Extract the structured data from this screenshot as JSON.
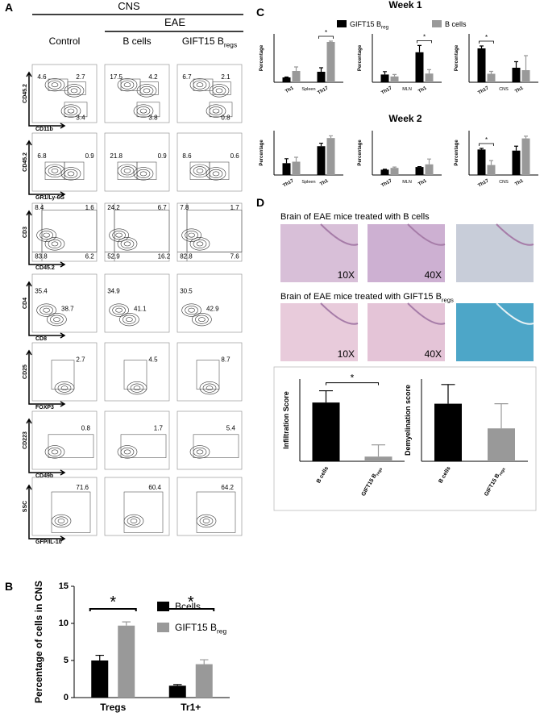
{
  "panel_a": {
    "label": "A",
    "header": "CNS",
    "subheader": "EAE",
    "columns": [
      {
        "text": "Control"
      },
      {
        "text": "B cells"
      },
      {
        "text": "GIFT15 B",
        "sub": "regs"
      }
    ],
    "rows": [
      {
        "y_label": "CD45.2",
        "x_label": "CD11b",
        "values": [
          [
            "4.6",
            "2.7",
            "3.4"
          ],
          [
            "17.5",
            "4.2",
            "3.8"
          ],
          [
            "6.7",
            "2.1",
            "0.8"
          ]
        ]
      },
      {
        "y_label": "CD45.2",
        "x_label": "GR1/Ly-6G",
        "values": [
          [
            "6.8",
            "0.9"
          ],
          [
            "21.8",
            "0.9"
          ],
          [
            "8.6",
            "0.6"
          ]
        ]
      },
      {
        "y_label": "CD3",
        "x_label": "CD45.2",
        "values": [
          [
            "8.4",
            "1.6",
            "83.8",
            "6.2"
          ],
          [
            "24.2",
            "6.7",
            "52.9",
            "16.2"
          ],
          [
            "7.8",
            "1.7",
            "82.8",
            "7.6"
          ]
        ]
      },
      {
        "y_label": "CD4",
        "x_label": "CD8",
        "values": [
          [
            "35.4",
            "38.7"
          ],
          [
            "34.9",
            "41.1"
          ],
          [
            "30.5",
            "42.9"
          ]
        ]
      },
      {
        "y_label": "CD25",
        "x_label": "FOXP3",
        "values": [
          [
            "2.7"
          ],
          [
            "4.5"
          ],
          [
            "8.7"
          ]
        ]
      },
      {
        "y_label": "CD223",
        "x_label": "CD49b",
        "values": [
          [
            "0.8"
          ],
          [
            "1.7"
          ],
          [
            "5.4"
          ]
        ]
      },
      {
        "y_label": "SSC",
        "x_label": "GFP/IL-10",
        "values": [
          [
            "71.6"
          ],
          [
            "60.4"
          ],
          [
            "64.2"
          ]
        ]
      }
    ]
  },
  "panel_b": {
    "label": "B"
  },
  "panel_c": {
    "label": "C",
    "titles": [
      "Week 1",
      "Week 2"
    ],
    "legend": [
      {
        "name": "GIFT15 B",
        "sub": "reg",
        "color": "#000000"
      },
      {
        "name": "B cells",
        "color": "#999999"
      }
    ]
  },
  "panel_d": {
    "label": "D",
    "captions": [
      {
        "text": "Brain of EAE mice treated with B cells"
      },
      {
        "text": "Brain of EAE mice treated with GIFT15 B",
        "sub": "regs"
      }
    ],
    "magnifications": [
      [
        "10X",
        "40X"
      ],
      [
        "10X",
        "40X"
      ]
    ]
  },
  "chart_data": [
    {
      "type": "bar",
      "ylabel": "Percentage of cells in CNS",
      "categories": [
        "Tregs",
        "Tr1+"
      ],
      "series": [
        {
          "name": "Bcells",
          "color": "#000000",
          "values": [
            5,
            1.6
          ],
          "errors": [
            0.7,
            0.15
          ]
        },
        {
          "name": "GIFT15 B",
          "name_sub": "reg",
          "color": "#999999",
          "values": [
            9.7,
            4.5
          ],
          "errors": [
            0.5,
            0.6
          ]
        }
      ],
      "ylim": [
        0,
        15
      ],
      "yticks": [
        0,
        5,
        10,
        15
      ],
      "significance": [
        {
          "category": 0,
          "label": "*"
        },
        {
          "category": 1,
          "label": "*"
        }
      ]
    },
    {
      "type": "bar",
      "ylabel": "Percentage",
      "categories": [
        "Th1",
        "Th17"
      ],
      "group": "Spleen",
      "series": [
        {
          "color": "#000000",
          "values": [
            0.6,
            1.3
          ],
          "errors": [
            0.05,
            0.5
          ]
        },
        {
          "color": "#999999",
          "values": [
            1.4,
            5
          ],
          "errors": [
            0.5,
            0.1
          ]
        }
      ],
      "ylim": [
        0,
        6
      ],
      "significance": [
        {
          "category": 1,
          "label": "*"
        }
      ]
    },
    {
      "type": "bar",
      "ylabel": "Percentage",
      "categories": [
        "Th17",
        "Th1"
      ],
      "group": "MLN",
      "series": [
        {
          "color": "#000000",
          "values": [
            0.8,
            3.1
          ],
          "errors": [
            0.3,
            0.7
          ]
        },
        {
          "color": "#999999",
          "values": [
            0.6,
            0.9
          ],
          "errors": [
            0.2,
            0.4
          ]
        }
      ],
      "ylim": [
        0,
        5
      ],
      "significance": [
        {
          "category": 1,
          "label": "*"
        }
      ]
    },
    {
      "type": "bar",
      "ylabel": "Percentage",
      "categories": [
        "Th17",
        "Th1"
      ],
      "group": "CNS",
      "series": [
        {
          "color": "#000000",
          "values": [
            2.8,
            1.2
          ],
          "errors": [
            0.2,
            0.5
          ]
        },
        {
          "color": "#999999",
          "values": [
            0.7,
            1
          ],
          "errors": [
            0.2,
            1.2
          ]
        }
      ],
      "ylim": [
        0,
        4
      ],
      "significance": [
        {
          "category": 0,
          "label": "*"
        }
      ]
    },
    {
      "type": "bar",
      "ylabel": "Percentage",
      "categories": [
        "Th17",
        "Th1"
      ],
      "group": "Spleen",
      "series": [
        {
          "color": "#000000",
          "values": [
            1.6,
            3.9
          ],
          "errors": [
            0.6,
            0.4
          ]
        },
        {
          "color": "#999999",
          "values": [
            1.8,
            5
          ],
          "errors": [
            0.6,
            0.3
          ]
        }
      ],
      "ylim": [
        0,
        6
      ]
    },
    {
      "type": "bar",
      "ylabel": "Percentage",
      "categories": [
        "Th17",
        "Th1"
      ],
      "group": "MLN",
      "series": [
        {
          "color": "#000000",
          "values": [
            0.6,
            0.9
          ],
          "errors": [
            0.05,
            0.05
          ]
        },
        {
          "color": "#999999",
          "values": [
            0.8,
            1.2
          ],
          "errors": [
            0.1,
            0.6
          ]
        }
      ],
      "ylim": [
        0,
        5
      ]
    },
    {
      "type": "bar",
      "ylabel": "Percentage",
      "categories": [
        "Th17",
        "Th1"
      ],
      "group": "CNS",
      "series": [
        {
          "color": "#000000",
          "values": [
            11.5,
            11
          ],
          "errors": [
            0.5,
            2
          ]
        },
        {
          "color": "#999999",
          "values": [
            4.5,
            16.5
          ],
          "errors": [
            2,
            1
          ]
        }
      ],
      "ylim": [
        0,
        20
      ],
      "significance": [
        {
          "category": 0,
          "label": "*"
        }
      ]
    },
    {
      "type": "bar",
      "ylabel": "Infiltration Score",
      "categories": [
        {
          "text": "B cells"
        },
        {
          "text": "GIFT15 B",
          "sub": "regs"
        }
      ],
      "series": [
        {
          "colors": [
            "#000000",
            "#999999"
          ],
          "values": [
            2.5,
            0.2
          ],
          "errors": [
            0.5,
            0.5
          ]
        }
      ],
      "ylim": [
        0,
        3.5
      ],
      "significance": [
        {
          "label": "*"
        }
      ]
    },
    {
      "type": "bar",
      "ylabel": "Demyelination score",
      "categories": [
        {
          "text": "B cells"
        },
        {
          "text": "GIFT15 B",
          "sub": "regs"
        }
      ],
      "series": [
        {
          "colors": [
            "#000000",
            "#999999"
          ],
          "values": [
            2.1,
            1.2
          ],
          "errors": [
            0.7,
            0.9
          ]
        }
      ],
      "ylim": [
        0,
        3
      ]
    }
  ]
}
